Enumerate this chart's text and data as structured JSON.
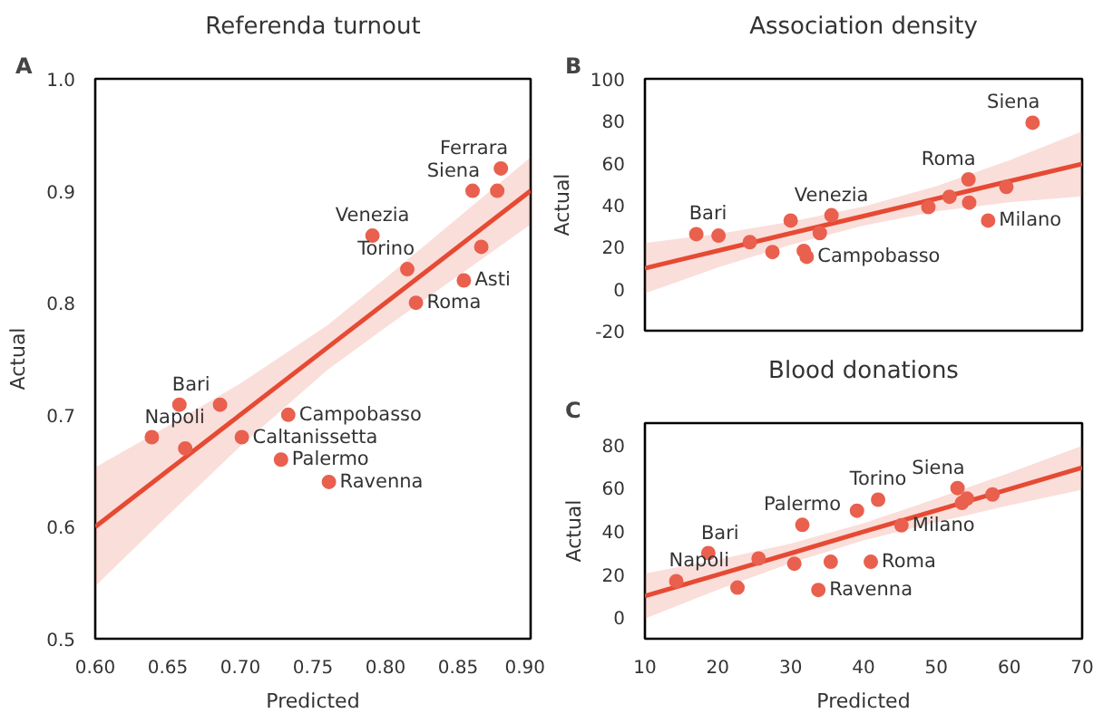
{
  "chart_data": [
    {
      "type": "scatter",
      "title": "Referenda turnout",
      "xlabel": "Predicted",
      "ylabel": "Actual",
      "grid": false,
      "annotations": [
        "A",
        {
          "text": "Ferrara",
          "x": 0.8795,
          "y": 0.92
        },
        {
          "text": "Siena",
          "x": 0.86,
          "y": 0.9
        },
        {
          "text": "Venezia",
          "x": 0.791,
          "y": 0.86
        },
        {
          "text": "Torino",
          "x": 0.815,
          "y": 0.83
        },
        {
          "text": "Asti",
          "x": 0.854,
          "y": 0.82
        },
        {
          "text": "Roma",
          "x": 0.821,
          "y": 0.8
        },
        {
          "text": "Bari",
          "x": 0.658,
          "y": 0.709
        },
        {
          "text": "Campobasso",
          "x": 0.733,
          "y": 0.7
        },
        {
          "text": "Napoli",
          "x": 0.639,
          "y": 0.68
        },
        {
          "text": "Caltanissetta",
          "x": 0.701,
          "y": 0.68
        },
        {
          "text": "Palermo",
          "x": 0.728,
          "y": 0.66
        },
        {
          "text": "Ravenna",
          "x": 0.761,
          "y": 0.64
        }
      ],
      "xlim": [
        0.6,
        0.9
      ],
      "ylim": [
        0.5,
        1.0
      ],
      "xticks": [
        {
          "value": 0.6,
          "label": "0.60"
        },
        {
          "value": 0.65,
          "label": "0.65"
        },
        {
          "value": 0.7,
          "label": "0.70"
        },
        {
          "value": 0.75,
          "label": "0.75"
        },
        {
          "value": 0.8,
          "label": "0.80"
        },
        {
          "value": 0.85,
          "label": "0.85"
        },
        {
          "value": 0.9,
          "label": "0.90"
        }
      ],
      "yticks": [
        0.5,
        0.6,
        0.7,
        0.8,
        0.9,
        {
          "value": 1.0,
          "label": "1.0"
        }
      ],
      "series": [
        {
          "type": "scatter",
          "color": "#e9604f",
          "x": [
            0.8795,
            0.86,
            0.877,
            0.791,
            0.866,
            0.815,
            0.854,
            0.821,
            0.658,
            0.686,
            0.733,
            0.639,
            0.662,
            0.701,
            0.728,
            0.761
          ],
          "values": [
            0.92,
            0.9,
            0.9,
            0.86,
            0.85,
            0.83,
            0.82,
            0.8,
            0.709,
            0.709,
            0.7,
            0.68,
            0.67,
            0.68,
            0.66,
            0.64
          ]
        },
        {
          "type": "line",
          "color": "#e64a33",
          "x": [
            0.6,
            0.65,
            0.7,
            0.76,
            0.8,
            0.85,
            0.9
          ],
          "values": [
            0.6,
            0.65,
            0.7,
            0.76,
            0.8,
            0.85,
            0.9
          ],
          "lower": [
            0.547,
            0.61,
            0.672,
            0.74,
            0.778,
            0.824,
            0.87
          ],
          "upper": [
            0.653,
            0.69,
            0.728,
            0.78,
            0.822,
            0.876,
            0.93
          ]
        }
      ]
    },
    {
      "type": "scatter",
      "title": "Association density",
      "ylabel": "Actual",
      "grid": false,
      "tick_labels": "y",
      "annotations": [
        "B",
        {
          "text": "Bari",
          "x": 17.05,
          "y": 26.0
        },
        {
          "text": "Venezia",
          "x": 35.6,
          "y": 35.0
        },
        {
          "text": "Campobasso",
          "x": 32.2,
          "y": 15.2
        },
        {
          "text": "Roma",
          "x": 54.4,
          "y": 52.1
        },
        {
          "text": "Milano",
          "x": 57.1,
          "y": 32.5
        },
        {
          "text": "Siena",
          "x": 63.2,
          "y": 79.1
        }
      ],
      "xlim": [
        10,
        70
      ],
      "ylim": [
        -20,
        100
      ],
      "xticks": [
        10,
        20,
        30,
        40,
        50,
        60,
        70
      ],
      "yticks": [
        -20,
        0,
        20,
        40,
        60,
        80,
        100
      ],
      "series": [
        {
          "type": "scatter",
          "color": "#e9604f",
          "x": [
            17.05,
            20.1,
            24.4,
            27.5,
            30.0,
            35.6,
            34.0,
            31.8,
            32.2,
            48.9,
            51.8,
            54.4,
            54.5,
            57.1,
            59.6,
            63.2
          ],
          "values": [
            26.0,
            25.3,
            22.2,
            17.5,
            32.5,
            35.0,
            26.5,
            18.0,
            15.2,
            38.9,
            43.8,
            52.1,
            41.0,
            32.5,
            48.5,
            79.1
          ]
        },
        {
          "type": "line",
          "color": "#e64a33",
          "x": [
            10,
            20,
            30,
            40,
            50,
            60,
            70
          ],
          "values": [
            9.8,
            18.1,
            26.4,
            34.6,
            42.9,
            51.2,
            59.5
          ],
          "lower": [
            -2.2,
            10.1,
            20.9,
            30.1,
            36.9,
            41.2,
            44.0
          ],
          "upper": [
            21.8,
            26.1,
            31.9,
            39.1,
            48.9,
            61.2,
            75.0
          ]
        }
      ]
    },
    {
      "type": "scatter",
      "title": "Blood donations",
      "xlabel": "Predicted",
      "ylabel": "Actual",
      "grid": false,
      "annotations": [
        "C",
        {
          "text": "Napoli",
          "x": 14.3,
          "y": 16.7
        },
        {
          "text": "Bari",
          "x": 18.7,
          "y": 29.7
        },
        {
          "text": "Palermo",
          "x": 31.6,
          "y": 42.8
        },
        {
          "text": "Ravenna",
          "x": 33.8,
          "y": 12.6
        },
        {
          "text": "Torino",
          "x": 42.0,
          "y": 54.5
        },
        {
          "text": "Roma",
          "x": 41.0,
          "y": 25.7
        },
        {
          "text": "Milano",
          "x": 45.2,
          "y": 42.6
        },
        {
          "text": "Siena",
          "x": 52.9,
          "y": 59.9
        }
      ],
      "xlim": [
        10,
        70
      ],
      "ylim": [
        -10,
        90
      ],
      "xticks": [
        10,
        20,
        30,
        40,
        50,
        60,
        70
      ],
      "yticks": [
        0,
        20,
        40,
        60,
        80
      ],
      "series": [
        {
          "type": "scatter",
          "color": "#e9604f",
          "x": [
            14.3,
            18.7,
            22.7,
            25.6,
            30.5,
            31.6,
            33.8,
            35.5,
            39.1,
            42.0,
            41.0,
            45.2,
            52.9,
            53.5,
            54.2,
            57.7
          ],
          "values": [
            16.7,
            29.7,
            13.7,
            27.2,
            24.8,
            42.8,
            12.6,
            25.7,
            49.4,
            54.5,
            25.7,
            42.6,
            59.9,
            53.0,
            55.0,
            56.9
          ]
        },
        {
          "type": "line",
          "color": "#e64a33",
          "x": [
            10,
            20,
            30,
            40,
            50,
            60,
            70
          ],
          "values": [
            9.8,
            19.7,
            29.6,
            39.6,
            49.5,
            59.4,
            69.3
          ],
          "lower": [
            -0.7,
            12.7,
            25.1,
            35.6,
            44.0,
            51.9,
            59.1
          ],
          "upper": [
            20.3,
            26.7,
            34.1,
            43.6,
            55.0,
            66.9,
            79.5
          ]
        }
      ]
    }
  ]
}
